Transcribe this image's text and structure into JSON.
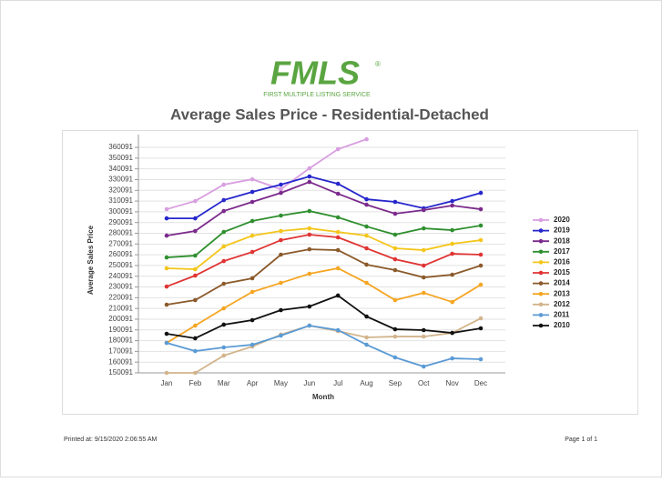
{
  "header": {
    "logo": "FMLS",
    "mark": "®",
    "tagline": "FIRST MULTIPLE LISTING SERVICE"
  },
  "footer": {
    "printed": "Printed at:  9/15/2020 2:06:55 AM",
    "page": "Page 1 of 1"
  },
  "chart_data": {
    "type": "line",
    "title": "Average Sales Price - Residential-Detached",
    "x_label": "Month",
    "y_label": "Average Sales Price",
    "categories": [
      "Jan",
      "Feb",
      "Mar",
      "Apr",
      "May",
      "Jun",
      "Jul",
      "Aug",
      "Sep",
      "Oct",
      "Nov",
      "Dec"
    ],
    "ylim": [
      150091,
      372000
    ],
    "yticks": [
      150091,
      160091,
      170091,
      180091,
      190091,
      200091,
      210091,
      220091,
      230091,
      240091,
      250091,
      260091,
      270091,
      280091,
      290091,
      300091,
      310091,
      320091,
      330091,
      340091,
      350091,
      360091
    ],
    "grid": true,
    "legend": "right",
    "series": [
      {
        "name": "2020",
        "color": "#d89ee0",
        "values": [
          302500,
          310100,
          325400,
          330400,
          321100,
          340600,
          358400,
          367700,
          null,
          null,
          null,
          null
        ]
      },
      {
        "name": "2019",
        "color": "#2626cc",
        "values": [
          294000,
          294000,
          311000,
          318600,
          325400,
          333000,
          326200,
          311800,
          309300,
          303400,
          310100,
          317700
        ]
      },
      {
        "name": "2018",
        "color": "#7b2a8c",
        "values": [
          277900,
          282200,
          300800,
          309300,
          317700,
          327900,
          316900,
          306700,
          298300,
          301700,
          305900,
          302500
        ]
      },
      {
        "name": "2017",
        "color": "#2f8f2f",
        "values": [
          257600,
          259300,
          281300,
          291500,
          296600,
          300800,
          294900,
          286400,
          278800,
          284700,
          283000,
          287300
        ]
      },
      {
        "name": "2016",
        "color": "#f4c61c",
        "values": [
          247500,
          246600,
          267800,
          277900,
          282200,
          284700,
          281300,
          277900,
          266100,
          264400,
          270300,
          273700
        ]
      },
      {
        "name": "2015",
        "color": "#e03434",
        "values": [
          230500,
          240700,
          254200,
          262700,
          273700,
          278800,
          276300,
          266100,
          255900,
          250000,
          261000,
          260200
        ]
      },
      {
        "name": "2014",
        "color": "#8b5a2b",
        "values": [
          213600,
          217800,
          233100,
          238200,
          260200,
          265200,
          264400,
          250900,
          245800,
          239000,
          241500,
          250000
        ]
      },
      {
        "name": "2013",
        "color": "#f5a623",
        "values": [
          178000,
          194100,
          210200,
          225500,
          233900,
          242400,
          247500,
          233900,
          217800,
          224600,
          216100,
          232200
        ]
      },
      {
        "name": "2012",
        "color": "#d2b48c",
        "values": [
          150100,
          150100,
          166200,
          174600,
          185700,
          194100,
          189000,
          183100,
          183900,
          183900,
          187300,
          200900
        ]
      },
      {
        "name": "2011",
        "color": "#5b9bd5",
        "values": [
          178000,
          170400,
          173800,
          176300,
          184800,
          194100,
          189900,
          176300,
          164500,
          156000,
          163600,
          162800
        ]
      },
      {
        "name": "2010",
        "color": "#111111",
        "values": [
          186500,
          182300,
          195000,
          199200,
          208500,
          211900,
          222100,
          202600,
          190700,
          189900,
          187300,
          191600
        ]
      }
    ]
  }
}
